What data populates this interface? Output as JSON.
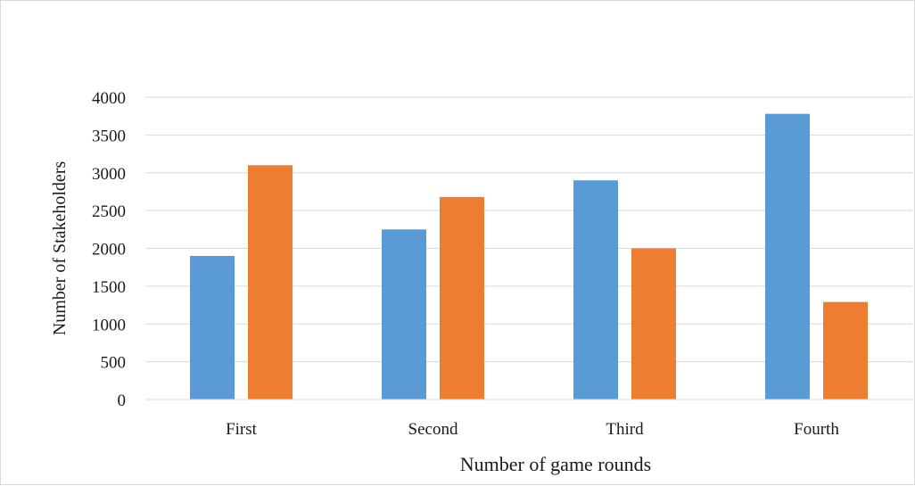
{
  "chart_data": {
    "type": "bar",
    "title": "",
    "xlabel": "Number of game rounds",
    "ylabel": "Number of Stakeholders",
    "categories": [
      "First",
      "Second",
      "Third",
      "Fourth"
    ],
    "series": [
      {
        "color": "#5b9bd5",
        "values": [
          1900,
          2250,
          2900,
          3780
        ]
      },
      {
        "color": "#ed7d31",
        "values": [
          3100,
          2680,
          2000,
          1290
        ]
      }
    ],
    "ylim": [
      0,
      4000
    ],
    "yticks": [
      0,
      500,
      1000,
      1500,
      2000,
      2500,
      3000,
      3500,
      4000
    ],
    "grid": true,
    "legend": "none"
  }
}
